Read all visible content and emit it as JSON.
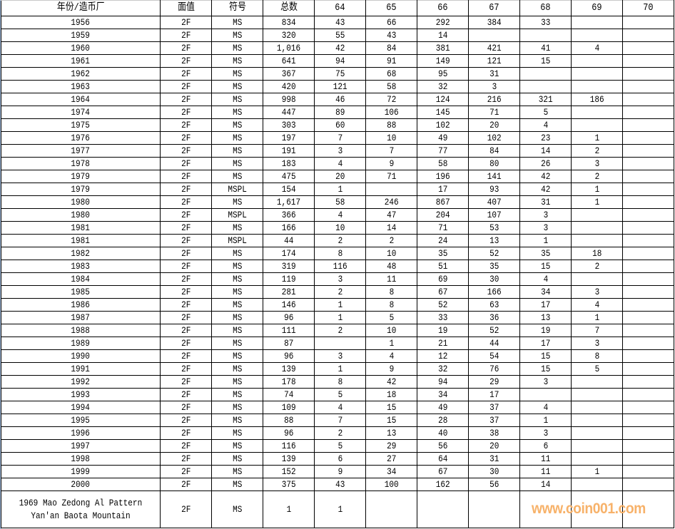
{
  "table": {
    "headers": [
      "年份/造币厂",
      "面值",
      "符号",
      "总数",
      "64",
      "65",
      "66",
      "67",
      "68",
      "69",
      "70"
    ],
    "rows": [
      [
        "1956",
        "2F",
        "MS",
        "834",
        "43",
        "66",
        "292",
        "384",
        "33",
        "",
        ""
      ],
      [
        "1959",
        "2F",
        "MS",
        "320",
        "55",
        "43",
        "14",
        "",
        "",
        "",
        ""
      ],
      [
        "1960",
        "2F",
        "MS",
        "1,016",
        "42",
        "84",
        "381",
        "421",
        "41",
        "4",
        ""
      ],
      [
        "1961",
        "2F",
        "MS",
        "641",
        "94",
        "91",
        "149",
        "121",
        "15",
        "",
        ""
      ],
      [
        "1962",
        "2F",
        "MS",
        "367",
        "75",
        "68",
        "95",
        "31",
        "",
        "",
        ""
      ],
      [
        "1963",
        "2F",
        "MS",
        "420",
        "121",
        "58",
        "32",
        "3",
        "",
        "",
        ""
      ],
      [
        "1964",
        "2F",
        "MS",
        "998",
        "46",
        "72",
        "124",
        "216",
        "321",
        "186",
        ""
      ],
      [
        "1974",
        "2F",
        "MS",
        "447",
        "89",
        "106",
        "145",
        "71",
        "5",
        "",
        ""
      ],
      [
        "1975",
        "2F",
        "MS",
        "303",
        "60",
        "88",
        "102",
        "20",
        "4",
        "",
        ""
      ],
      [
        "1976",
        "2F",
        "MS",
        "197",
        "7",
        "10",
        "49",
        "102",
        "23",
        "1",
        ""
      ],
      [
        "1977",
        "2F",
        "MS",
        "191",
        "3",
        "7",
        "77",
        "84",
        "14",
        "2",
        ""
      ],
      [
        "1978",
        "2F",
        "MS",
        "183",
        "4",
        "9",
        "58",
        "80",
        "26",
        "3",
        ""
      ],
      [
        "1979",
        "2F",
        "MS",
        "475",
        "20",
        "71",
        "196",
        "141",
        "42",
        "2",
        ""
      ],
      [
        "1979",
        "2F",
        "MSPL",
        "154",
        "1",
        "",
        "17",
        "93",
        "42",
        "1",
        ""
      ],
      [
        "1980",
        "2F",
        "MS",
        "1,617",
        "58",
        "246",
        "867",
        "407",
        "31",
        "1",
        ""
      ],
      [
        "1980",
        "2F",
        "MSPL",
        "366",
        "4",
        "47",
        "204",
        "107",
        "3",
        "",
        ""
      ],
      [
        "1981",
        "2F",
        "MS",
        "166",
        "10",
        "14",
        "71",
        "53",
        "3",
        "",
        ""
      ],
      [
        "1981",
        "2F",
        "MSPL",
        "44",
        "2",
        "2",
        "24",
        "13",
        "1",
        "",
        ""
      ],
      [
        "1982",
        "2F",
        "MS",
        "174",
        "8",
        "10",
        "35",
        "52",
        "35",
        "18",
        ""
      ],
      [
        "1983",
        "2F",
        "MS",
        "319",
        "116",
        "48",
        "51",
        "35",
        "15",
        "2",
        ""
      ],
      [
        "1984",
        "2F",
        "MS",
        "119",
        "3",
        "11",
        "69",
        "30",
        "4",
        "",
        ""
      ],
      [
        "1985",
        "2F",
        "MS",
        "281",
        "2",
        "8",
        "67",
        "166",
        "34",
        "3",
        ""
      ],
      [
        "1986",
        "2F",
        "MS",
        "146",
        "1",
        "8",
        "52",
        "63",
        "17",
        "4",
        ""
      ],
      [
        "1987",
        "2F",
        "MS",
        "96",
        "1",
        "5",
        "33",
        "36",
        "13",
        "1",
        ""
      ],
      [
        "1988",
        "2F",
        "MS",
        "111",
        "2",
        "10",
        "19",
        "52",
        "19",
        "7",
        ""
      ],
      [
        "1989",
        "2F",
        "MS",
        "87",
        "",
        "1",
        "21",
        "44",
        "17",
        "3",
        ""
      ],
      [
        "1990",
        "2F",
        "MS",
        "96",
        "3",
        "4",
        "12",
        "54",
        "15",
        "8",
        ""
      ],
      [
        "1991",
        "2F",
        "MS",
        "139",
        "1",
        "9",
        "32",
        "76",
        "15",
        "5",
        ""
      ],
      [
        "1992",
        "2F",
        "MS",
        "178",
        "8",
        "42",
        "94",
        "29",
        "3",
        "",
        ""
      ],
      [
        "1993",
        "2F",
        "MS",
        "74",
        "5",
        "18",
        "34",
        "17",
        "",
        "",
        ""
      ],
      [
        "1994",
        "2F",
        "MS",
        "109",
        "4",
        "15",
        "49",
        "37",
        "4",
        "",
        ""
      ],
      [
        "1995",
        "2F",
        "MS",
        "88",
        "7",
        "15",
        "28",
        "37",
        "1",
        "",
        ""
      ],
      [
        "1996",
        "2F",
        "MS",
        "96",
        "2",
        "13",
        "40",
        "38",
        "3",
        "",
        ""
      ],
      [
        "1997",
        "2F",
        "MS",
        "116",
        "5",
        "29",
        "56",
        "20",
        "6",
        "",
        ""
      ],
      [
        "1998",
        "2F",
        "MS",
        "139",
        "6",
        "27",
        "64",
        "31",
        "11",
        "",
        ""
      ],
      [
        "1999",
        "2F",
        "MS",
        "152",
        "9",
        "34",
        "67",
        "30",
        "11",
        "1",
        ""
      ],
      [
        "2000",
        "2F",
        "MS",
        "375",
        "43",
        "100",
        "162",
        "56",
        "14",
        "",
        ""
      ],
      [
        "1969 Mao Zedong Al Pattern Yan'an Baota Mountain",
        "2F",
        "MS",
        "1",
        "1",
        "",
        "",
        "",
        "",
        "",
        ""
      ]
    ]
  },
  "watermark": "www.coin001.com",
  "colors": {
    "grid": "#000000",
    "watermark": "#f7b26a",
    "left_edge": "#a9c4e6"
  }
}
